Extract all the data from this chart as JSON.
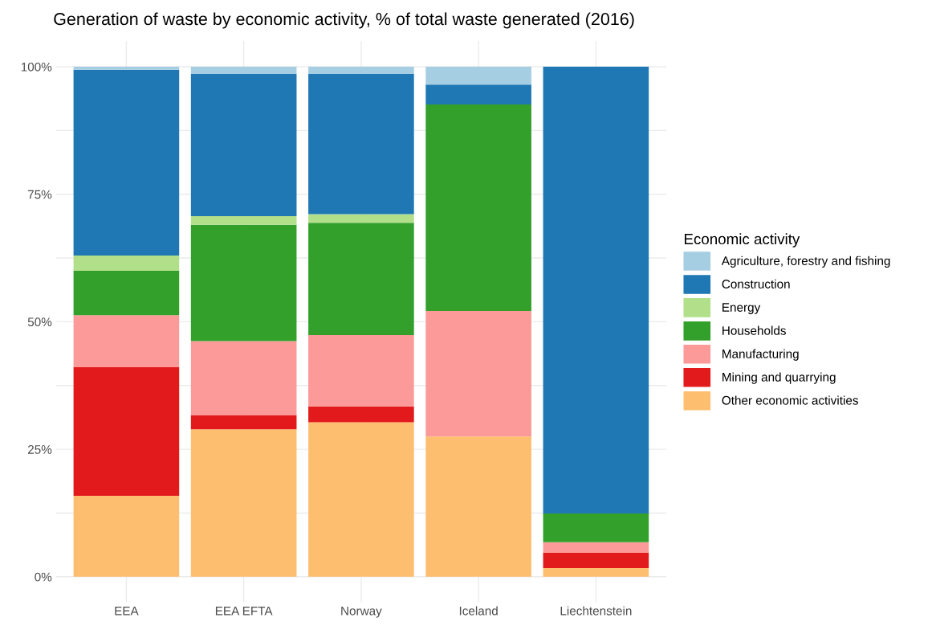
{
  "chart_data": {
    "type": "bar",
    "title": "Generation of waste by economic activity, % of total waste generated (2016)",
    "categories": [
      "EEA",
      "EEA EFTA",
      "Norway",
      "Iceland",
      "Liechtenstein"
    ],
    "stacked": true,
    "series": [
      {
        "name": "Other economic activities",
        "color": "#fdbf6f",
        "values": [
          15.9,
          28.9,
          30.3,
          27.5,
          1.7
        ]
      },
      {
        "name": "Mining and quarrying",
        "color": "#e31a1c",
        "values": [
          25.2,
          2.8,
          3.1,
          0,
          3.0
        ]
      },
      {
        "name": "Manufacturing",
        "color": "#fb9a99",
        "values": [
          10.2,
          14.5,
          14.0,
          24.6,
          2.1
        ]
      },
      {
        "name": "Households",
        "color": "#33a02c",
        "values": [
          8.7,
          22.8,
          22.0,
          40.5,
          5.6
        ]
      },
      {
        "name": "Energy",
        "color": "#b2df8a",
        "values": [
          3.0,
          1.7,
          1.7,
          0,
          0
        ]
      },
      {
        "name": "Construction",
        "color": "#1f78b4",
        "values": [
          36.4,
          27.9,
          27.5,
          3.9,
          87.6
        ]
      },
      {
        "name": "Agriculture, forestry and fishing",
        "color": "#a6cee3",
        "values": [
          0.6,
          1.4,
          1.4,
          3.5,
          0
        ]
      }
    ],
    "ylim": [
      -5,
      105
    ],
    "yticks": [
      {
        "value": 0,
        "label": "0%"
      },
      {
        "value": 12.5,
        "label": null
      },
      {
        "value": 25,
        "label": "25%"
      },
      {
        "value": 37.5,
        "label": null
      },
      {
        "value": 50,
        "label": "50%"
      },
      {
        "value": 62.5,
        "label": null
      },
      {
        "value": 75,
        "label": "75%"
      },
      {
        "value": 87.5,
        "label": null
      },
      {
        "value": 100,
        "label": "100%"
      }
    ],
    "grid": true,
    "legend": "right",
    "legend_title": "Economic activity"
  }
}
